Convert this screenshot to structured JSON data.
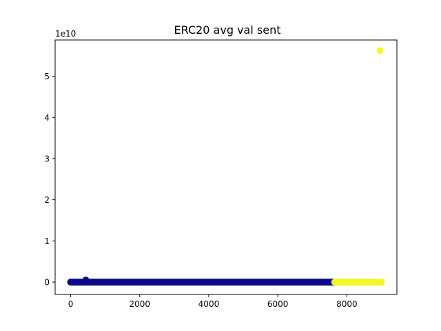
{
  "chart_data": {
    "type": "scatter",
    "title": "ERC20 avg val sent",
    "xlabel": "",
    "ylabel": "",
    "y_offset_label": "1e10",
    "xlim": [
      -450,
      9450
    ],
    "ylim": [
      -3000000000.0,
      58800000000.0
    ],
    "y_scale_factor": 10000000000.0,
    "x_ticks": [
      0,
      2000,
      4000,
      6000,
      8000
    ],
    "x_tick_labels": [
      "0",
      "2000",
      "4000",
      "6000",
      "8000"
    ],
    "y_ticks": [
      0,
      10000000000.0,
      20000000000.0,
      30000000000.0,
      40000000000.0,
      50000000000.0
    ],
    "y_tick_labels": [
      "0",
      "1",
      "2",
      "3",
      "4",
      "5"
    ],
    "grid": false,
    "legend": "none",
    "series": [
      {
        "color": "#0d0887",
        "x_range": [
          0,
          7650
        ],
        "y_value": 0,
        "points": [
          [
            440,
            500000000.0
          ]
        ]
      },
      {
        "color": "#f0f921",
        "x_range": [
          7650,
          9000
        ],
        "y_value": 0,
        "points": [
          [
            8960,
            56200000000.0
          ]
        ]
      }
    ]
  }
}
